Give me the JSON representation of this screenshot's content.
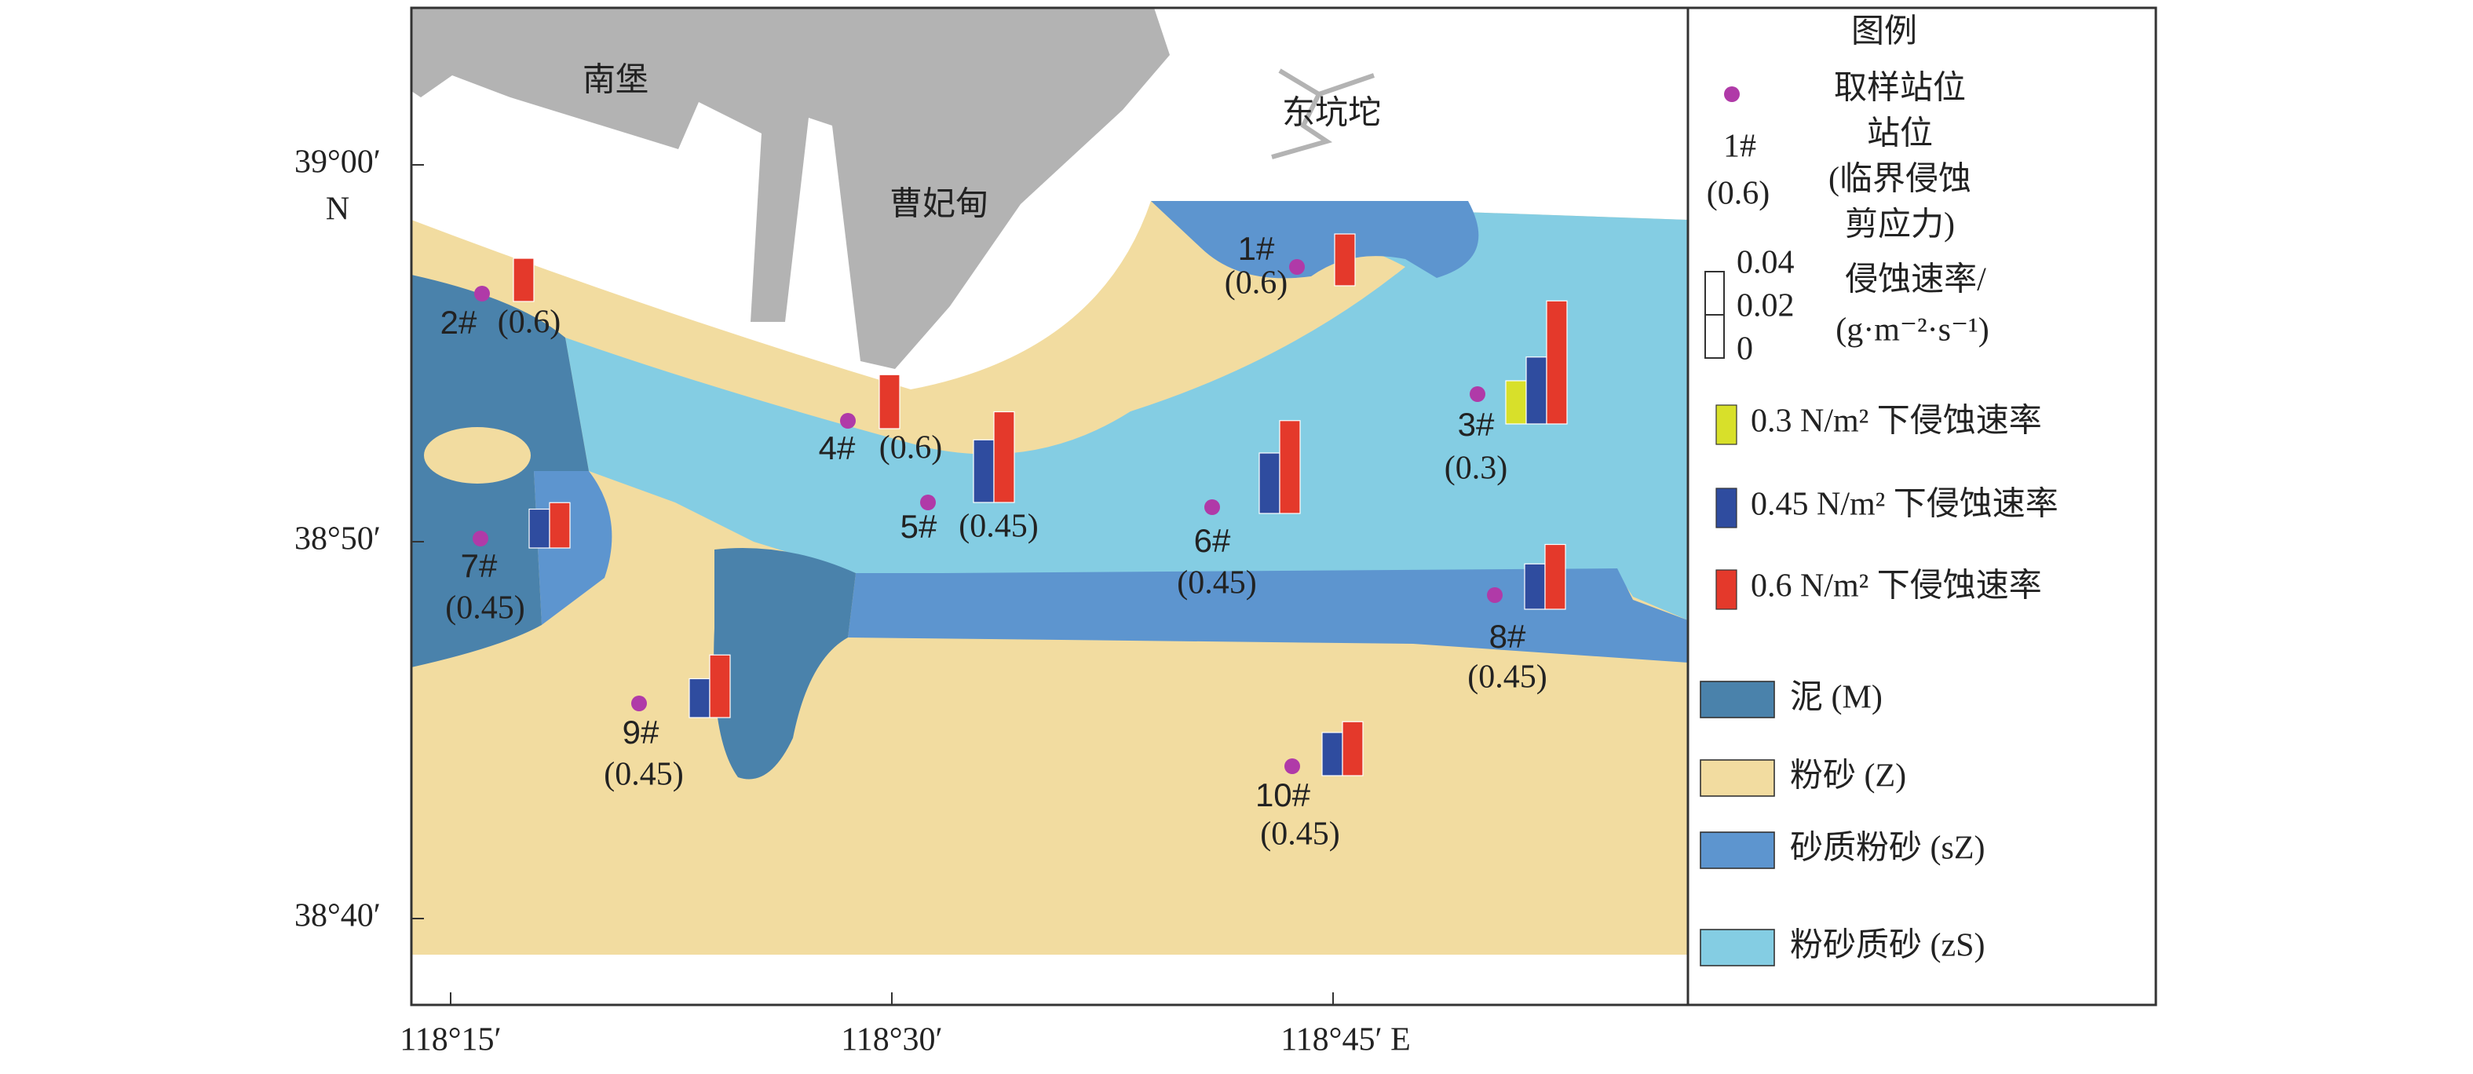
{
  "map": {
    "place_names": [
      "南堡",
      "曹妃甸",
      "东坑坨"
    ],
    "x_labels": [
      "118°15′",
      "118°30′",
      "118°45′ E"
    ],
    "y_labels": [
      "39°00′",
      "38°50′",
      "38°40′"
    ],
    "y_unit": "N",
    "stations": [
      {
        "label": "1#",
        "stress": "(0.6)",
        "rates": [
          null,
          null,
          0.024
        ]
      },
      {
        "label": "2#",
        "stress": "(0.6)",
        "rates": [
          null,
          null,
          0.02
        ]
      },
      {
        "label": "3#",
        "stress": "(0.3)",
        "rates": [
          0.02,
          0.031,
          0.057
        ]
      },
      {
        "label": "4#",
        "stress": "(0.6)",
        "rates": [
          null,
          null,
          0.025
        ]
      },
      {
        "label": "5#",
        "stress": "(0.45)",
        "rates": [
          null,
          0.029,
          0.042
        ]
      },
      {
        "label": "6#",
        "stress": "(0.45)",
        "rates": [
          null,
          0.028,
          0.043
        ]
      },
      {
        "label": "7#",
        "stress": "(0.45)",
        "rates": [
          null,
          0.018,
          0.021
        ]
      },
      {
        "label": "8#",
        "stress": "(0.45)",
        "rates": [
          null,
          0.021,
          0.03
        ]
      },
      {
        "label": "9#",
        "stress": "(0.45)",
        "rates": [
          null,
          0.018,
          0.029
        ]
      },
      {
        "label": "10#",
        "stress": "(0.45)",
        "rates": [
          null,
          0.02,
          0.025
        ]
      }
    ]
  },
  "legend": {
    "title": "图例",
    "station": "取样站位",
    "sample_label": "1#",
    "sample_stress": "(0.6)",
    "station_caption": [
      "站位",
      "(临界侵蚀",
      "剪应力)"
    ],
    "rate_ticks": [
      0,
      0.02,
      0.04
    ],
    "rate_caption": [
      "侵蚀速率/",
      "(g·m⁻²·s⁻¹)"
    ],
    "series": [
      {
        "name": "0.3 N/m² 下侵蚀速率",
        "color": "#d8e02a"
      },
      {
        "name": "0.45 N/m² 下侵蚀速率",
        "color": "#2f4c9f"
      },
      {
        "name": "0.6 N/m² 下侵蚀速率",
        "color": "#e4392b"
      }
    ],
    "sediments": [
      {
        "name": "泥 (M)",
        "color": "#4a82ab"
      },
      {
        "name": "粉砂 (Z)",
        "color": "#f2dca0"
      },
      {
        "name": "砂质粉砂 (sZ)",
        "color": "#5d95cf"
      },
      {
        "name": "粉砂质砂 (zS)",
        "color": "#84cde3"
      }
    ]
  }
}
